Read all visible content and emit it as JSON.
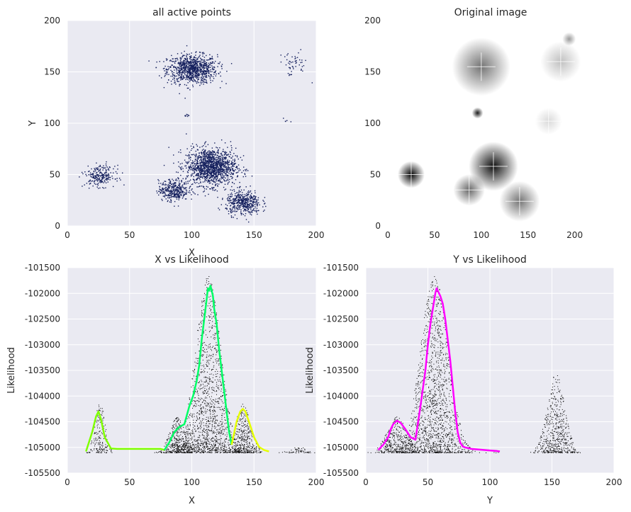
{
  "chart_data": [
    {
      "type": "scatter",
      "title": "all active points",
      "xlabel": "X",
      "ylabel": "Y",
      "xlim": [
        0,
        200
      ],
      "ylim": [
        0,
        200
      ],
      "xticks": [
        0,
        50,
        100,
        150,
        200
      ],
      "yticks": [
        0,
        50,
        100,
        150,
        200
      ],
      "grid": true,
      "point_color": "#131e5c",
      "clusters": [
        {
          "cx": 100,
          "cy": 153,
          "sx": 10,
          "sy": 7,
          "n": 900
        },
        {
          "cx": 115,
          "cy": 58,
          "sx": 10,
          "sy": 9,
          "n": 1300
        },
        {
          "cx": 85,
          "cy": 35,
          "sx": 6,
          "sy": 5,
          "n": 350
        },
        {
          "cx": 141,
          "cy": 23,
          "sx": 7,
          "sy": 6,
          "n": 450
        },
        {
          "cx": 26,
          "cy": 49,
          "sx": 6,
          "sy": 5,
          "n": 230
        },
        {
          "cx": 181,
          "cy": 158,
          "sx": 6,
          "sy": 6,
          "n": 50
        },
        {
          "cx": 96,
          "cy": 108,
          "sx": 1,
          "sy": 0.6,
          "n": 8
        },
        {
          "cx": 175,
          "cy": 103,
          "sx": 1,
          "sy": 1.2,
          "n": 6
        }
      ]
    },
    {
      "type": "heatmap",
      "title": "Original image",
      "xlim": [
        0,
        220
      ],
      "ylim": [
        0,
        200
      ],
      "xticks": [
        0,
        50,
        100,
        150,
        200
      ],
      "yticks": [
        0,
        50,
        100,
        150,
        200
      ],
      "sources": [
        {
          "x": 25,
          "y": 50,
          "r": 6,
          "intensity": 1.0
        },
        {
          "x": 113,
          "y": 58,
          "r": 11,
          "intensity": 0.95
        },
        {
          "x": 100,
          "y": 155,
          "r": 13,
          "intensity": 0.55
        },
        {
          "x": 87,
          "y": 35,
          "r": 7,
          "intensity": 0.6
        },
        {
          "x": 141,
          "y": 24,
          "r": 9,
          "intensity": 0.55
        },
        {
          "x": 185,
          "y": 160,
          "r": 9,
          "intensity": 0.25
        },
        {
          "x": 172,
          "y": 102,
          "r": 6,
          "intensity": 0.15
        },
        {
          "x": 194,
          "y": 182,
          "r": 3,
          "intensity": 0.4
        },
        {
          "x": 96,
          "y": 110,
          "r": 2.5,
          "intensity": 0.9
        }
      ]
    },
    {
      "type": "line",
      "title": "X vs Likelihood",
      "xlabel": "X",
      "ylabel": "Likelihood",
      "xlim": [
        0,
        200
      ],
      "ylim": [
        -105500,
        -101500
      ],
      "xticks": [
        0,
        50,
        100,
        150,
        200
      ],
      "yticks": [
        -101500,
        -102000,
        -102500,
        -103000,
        -103500,
        -104000,
        -104500,
        -105000,
        -105500
      ],
      "grid": true,
      "scatter_color": "#000000",
      "series": [
        {
          "color": "#7fff00",
          "x": [
            15,
            20,
            23,
            25,
            27,
            30,
            35,
            40,
            60,
            75,
            78
          ],
          "y": [
            -105080,
            -104700,
            -104400,
            -104300,
            -104450,
            -104800,
            -105020,
            -105030,
            -105030,
            -105030,
            -105050
          ]
        },
        {
          "color": "#00ff66",
          "x": [
            78,
            82,
            86,
            90,
            94,
            98,
            101,
            104,
            106,
            108,
            110,
            112,
            113,
            114,
            115,
            116,
            117,
            118,
            120,
            122,
            124,
            126,
            128,
            130,
            132
          ],
          "y": [
            -105050,
            -104900,
            -104700,
            -104600,
            -104550,
            -104200,
            -104000,
            -103700,
            -103400,
            -102900,
            -102500,
            -102100,
            -101900,
            -101950,
            -101850,
            -101950,
            -102050,
            -102300,
            -102600,
            -103100,
            -103500,
            -103900,
            -104300,
            -104700,
            -104950
          ]
        },
        {
          "color": "#e5ff00",
          "x": [
            132,
            136,
            139,
            141,
            143,
            146,
            150,
            154,
            158,
            162
          ],
          "y": [
            -104950,
            -104500,
            -104300,
            -104250,
            -104300,
            -104500,
            -104800,
            -104990,
            -105050,
            -105080
          ]
        }
      ],
      "scatter_clusters": [
        {
          "cx": 26,
          "sx": 4,
          "peak": -104100,
          "n": 180
        },
        {
          "cx": 113,
          "sx": 10,
          "peak": -101650,
          "n": 1400
        },
        {
          "cx": 88,
          "sx": 6,
          "peak": -104400,
          "n": 400
        },
        {
          "cx": 141,
          "sx": 6,
          "peak": -104150,
          "n": 450
        },
        {
          "cx": 185,
          "sx": 6,
          "peak": -104950,
          "n": 60
        }
      ]
    },
    {
      "type": "line",
      "title": "Y vs Likelihood",
      "xlabel": "Y",
      "ylabel": "Likelihood",
      "xlim": [
        0,
        200
      ],
      "ylim": [
        -105500,
        -101500
      ],
      "xticks": [
        0,
        50,
        100,
        150,
        200
      ],
      "yticks": [
        -101500,
        -102000,
        -102500,
        -103000,
        -103500,
        -104000,
        -104500,
        -105000,
        -105500
      ],
      "grid": true,
      "scatter_color": "#000000",
      "series": [
        {
          "color": "#ff00ff",
          "x": [
            10,
            14,
            18,
            20,
            22,
            25,
            28,
            32,
            36,
            40,
            44,
            48,
            50,
            52,
            54,
            56,
            57,
            58,
            60,
            62,
            64,
            66,
            68,
            70,
            72,
            74,
            76,
            78,
            80,
            85,
            90,
            95,
            100,
            105,
            108
          ],
          "y": [
            -105050,
            -104950,
            -104800,
            -104650,
            -104550,
            -104480,
            -104520,
            -104650,
            -104800,
            -104850,
            -104200,
            -103500,
            -103000,
            -102600,
            -102300,
            -102000,
            -101900,
            -101950,
            -102050,
            -102200,
            -102500,
            -102900,
            -103300,
            -103800,
            -104300,
            -104700,
            -104900,
            -104980,
            -105000,
            -105030,
            -105040,
            -105050,
            -105060,
            -105070,
            -105080
          ]
        }
      ],
      "scatter_clusters": [
        {
          "cx": 55,
          "sx": 11,
          "peak": -101650,
          "n": 1500
        },
        {
          "cx": 25,
          "sx": 8,
          "peak": -104400,
          "n": 400
        },
        {
          "cx": 153,
          "sx": 7,
          "peak": -103550,
          "n": 550
        },
        {
          "cx": 105,
          "sx": 1.5,
          "peak": -105050,
          "n": 8
        }
      ]
    }
  ]
}
